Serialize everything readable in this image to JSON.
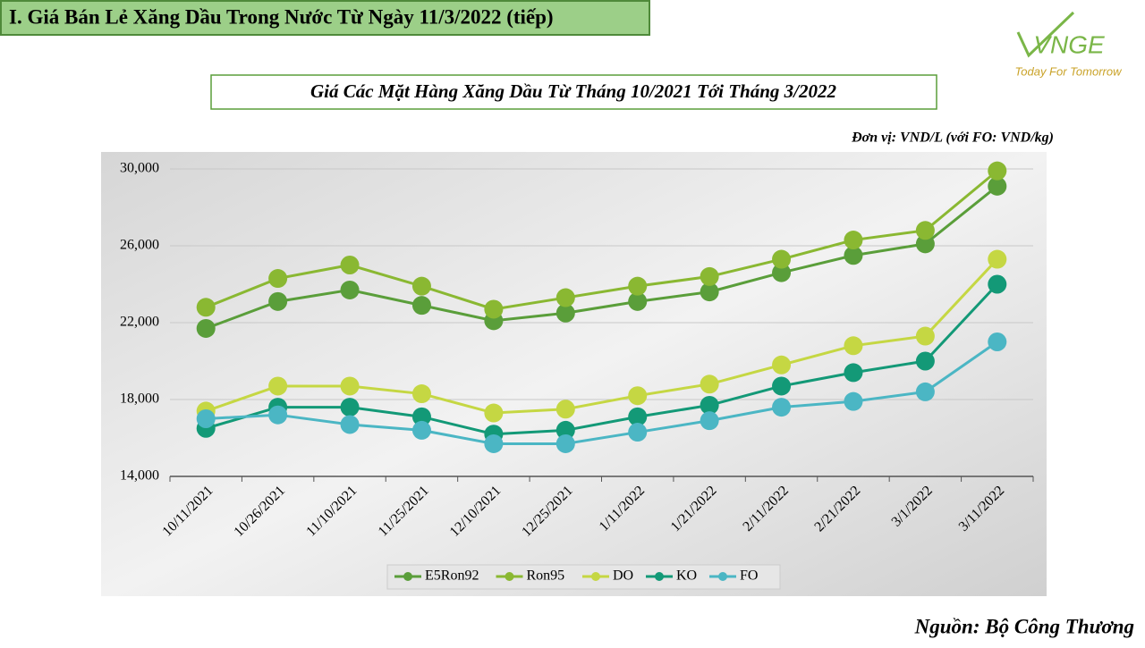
{
  "header": {
    "title": "I. Giá Bán Lẻ Xăng Dầu Trong Nước Từ Ngày 11/3/2022 (tiếp)"
  },
  "logo": {
    "text": "VNGE",
    "tagline": "Today For Tomorrow"
  },
  "chart_data": {
    "type": "line",
    "title": "Giá Các Mặt Hàng Xăng Dầu Từ Tháng 10/2021 Tới Tháng 3/2022",
    "unit_note": "Đơn vị: VND/L (với FO: VND/kg)",
    "source": "Nguồn: Bộ Công Thương",
    "categories": [
      "10/11/2021",
      "10/26/2021",
      "11/10/2021",
      "11/25/2021",
      "12/10/2021",
      "12/25/2021",
      "1/11/2022",
      "1/21/2022",
      "2/11/2022",
      "2/21/2022",
      "3/1/2022",
      "3/11/2022"
    ],
    "series": [
      {
        "name": "E5Ron92",
        "color": "#5a9e3a",
        "values": [
          21700,
          23100,
          23700,
          22900,
          22100,
          22500,
          23100,
          23600,
          24600,
          25500,
          26100,
          29100
        ]
      },
      {
        "name": "Ron95",
        "color": "#8ab832",
        "values": [
          22800,
          24300,
          25000,
          23900,
          22700,
          23300,
          23900,
          24400,
          25300,
          26300,
          26800,
          29900
        ]
      },
      {
        "name": "DO",
        "color": "#c5d743",
        "values": [
          17400,
          18700,
          18700,
          18300,
          17300,
          17500,
          18200,
          18800,
          19800,
          20800,
          21300,
          25300
        ]
      },
      {
        "name": "KO",
        "color": "#139977",
        "values": [
          16500,
          17600,
          17600,
          17100,
          16200,
          16400,
          17100,
          17700,
          18700,
          19400,
          20000,
          24000
        ]
      },
      {
        "name": "FO",
        "color": "#4bb6c4",
        "values": [
          17000,
          17200,
          16700,
          16400,
          15700,
          15700,
          16300,
          16900,
          17600,
          17900,
          18400,
          21000
        ]
      }
    ],
    "ylim": [
      14000,
      30000
    ],
    "yticks": [
      {
        "value": 14000,
        "label": "14,000"
      },
      {
        "value": 18000,
        "label": "18,000"
      },
      {
        "value": 22000,
        "label": "22,000"
      },
      {
        "value": 26000,
        "label": "26,000"
      },
      {
        "value": 30000,
        "label": "30,000"
      }
    ],
    "grid": true,
    "legend": "bottom"
  }
}
